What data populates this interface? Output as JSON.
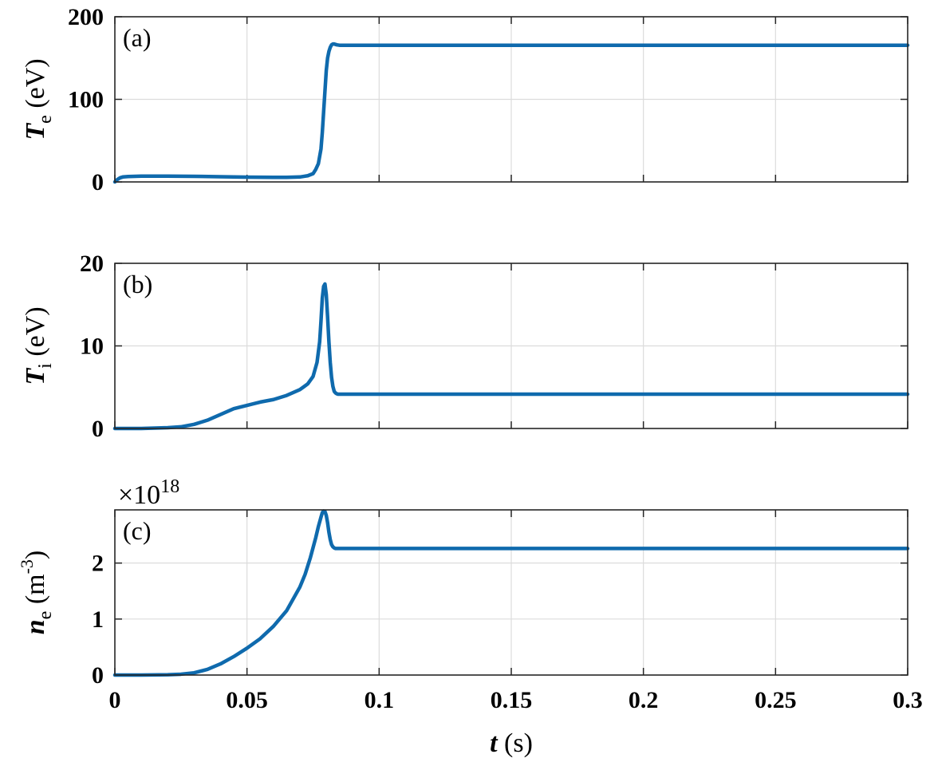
{
  "chart_data": {
    "type": "line",
    "line_color": "#0f6aad",
    "grid": true,
    "xlim": [
      0,
      0.3
    ],
    "xticks": [
      "0",
      "0.05",
      "0.1",
      "0.15",
      "0.2",
      "0.25",
      "0.3"
    ],
    "xlabel_var": "t",
    "xlabel_unit": " (s)",
    "panels": [
      {
        "label": "(a)",
        "ylabel_var": "T",
        "ylabel_sub": "e",
        "ylabel_unit": " (eV)",
        "ylim": [
          0,
          200
        ],
        "yticks": [
          "0",
          "100",
          "200"
        ],
        "exponent_label": "",
        "series": [
          {
            "x": [
              0,
              0.001,
              0.002,
              0.003,
              0.005,
              0.01,
              0.02,
              0.03,
              0.04,
              0.05,
              0.06,
              0.065,
              0.07,
              0.073,
              0.075,
              0.076,
              0.077,
              0.078,
              0.0785,
              0.079,
              0.0795,
              0.08,
              0.0805,
              0.081,
              0.0815,
              0.082,
              0.0825,
              0.083,
              0.0835,
              0.084,
              0.085,
              0.086,
              0.09,
              0.1,
              0.15,
              0.2,
              0.25,
              0.3
            ],
            "y": [
              0,
              3,
              5,
              6,
              6.5,
              7,
              7,
              6.8,
              6.3,
              5.8,
              5.5,
              5.5,
              6,
              7.5,
              10,
              15,
              22,
              40,
              60,
              85,
              110,
              135,
              150,
              158,
              163,
              166,
              167,
              167,
              166.5,
              166,
              165.5,
              165.5,
              165.5,
              165.5,
              165.5,
              165.5,
              165.5,
              165.5
            ]
          }
        ]
      },
      {
        "label": "(b)",
        "ylabel_var": "T",
        "ylabel_sub": "i",
        "ylabel_unit": " (eV)",
        "ylim": [
          0,
          20
        ],
        "yticks": [
          "0",
          "10",
          "20"
        ],
        "exponent_label": "",
        "series": [
          {
            "x": [
              0,
              0.01,
              0.02,
              0.025,
              0.03,
              0.035,
              0.04,
              0.045,
              0.05,
              0.055,
              0.06,
              0.065,
              0.07,
              0.073,
              0.075,
              0.0765,
              0.0775,
              0.078,
              0.0785,
              0.079,
              0.0795,
              0.08,
              0.0805,
              0.081,
              0.0815,
              0.082,
              0.0825,
              0.083,
              0.0835,
              0.084,
              0.0845,
              0.085,
              0.087,
              0.09,
              0.1,
              0.15,
              0.2,
              0.25,
              0.3
            ],
            "y": [
              0,
              0,
              0.1,
              0.2,
              0.5,
              1,
              1.7,
              2.4,
              2.8,
              3.2,
              3.5,
              4,
              4.7,
              5.4,
              6.3,
              8,
              10.5,
              13,
              15.8,
              17.2,
              17.5,
              16.2,
              13.5,
              10.5,
              8,
              6.2,
              5.1,
              4.5,
              4.3,
              4.2,
              4.15,
              4.15,
              4.15,
              4.15,
              4.15,
              4.15,
              4.15,
              4.15,
              4.15
            ]
          }
        ]
      },
      {
        "label": "(c)",
        "ylabel_var": "n",
        "ylabel_sub": "e",
        "ylabel_unit": " (m",
        "ylabel_sup": "-3",
        "ylabel_close": ")",
        "ylim": [
          0,
          2.95
        ],
        "yticks": [
          "0",
          "1",
          "2"
        ],
        "exponent_label": "×10",
        "exponent_power": "18",
        "series": [
          {
            "x": [
              0,
              0.01,
              0.02,
              0.025,
              0.03,
              0.035,
              0.04,
              0.045,
              0.05,
              0.055,
              0.06,
              0.065,
              0.07,
              0.072,
              0.074,
              0.076,
              0.077,
              0.078,
              0.0785,
              0.079,
              0.0795,
              0.08,
              0.0805,
              0.081,
              0.0815,
              0.082,
              0.0825,
              0.083,
              0.0835,
              0.084,
              0.085,
              0.09,
              0.1,
              0.15,
              0.2,
              0.25,
              0.3
            ],
            "y": [
              0,
              0,
              0.005,
              0.015,
              0.04,
              0.1,
              0.2,
              0.33,
              0.48,
              0.65,
              0.87,
              1.15,
              1.57,
              1.8,
              2.1,
              2.45,
              2.65,
              2.82,
              2.9,
              2.93,
              2.92,
              2.85,
              2.72,
              2.55,
              2.42,
              2.33,
              2.29,
              2.27,
              2.26,
              2.26,
              2.26,
              2.26,
              2.26,
              2.26,
              2.26,
              2.26,
              2.26
            ]
          }
        ]
      }
    ]
  }
}
